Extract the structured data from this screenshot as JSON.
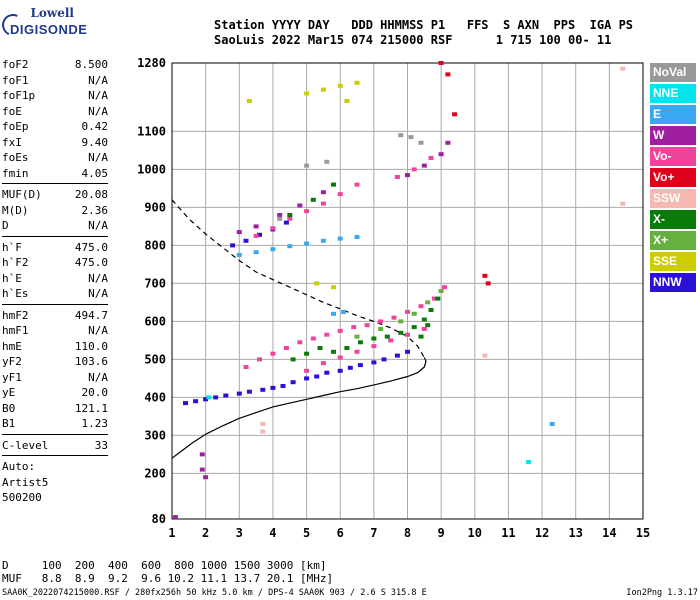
{
  "logo": {
    "line1": "Lowell",
    "line2": "DIGISONDE"
  },
  "header": {
    "line1": "Station YYYY DAY   DDD HHMMSS P1   FFS  S AXN  PPS  IGA PS",
    "line2": "SaoLuis 2022 Mar15 074 215000 RSF      1 715 100 00- 11"
  },
  "parameters": [
    [
      {
        "name": "foF2",
        "value": "8.500"
      },
      {
        "name": "foF1",
        "value": "N/A"
      },
      {
        "name": "foF1p",
        "value": "N/A"
      },
      {
        "name": "foE",
        "value": "N/A"
      },
      {
        "name": "foEp",
        "value": "0.42"
      },
      {
        "name": "fxI",
        "value": "9.40"
      },
      {
        "name": "foEs",
        "value": "N/A"
      },
      {
        "name": "fmin",
        "value": "4.05"
      }
    ],
    [
      {
        "name": "MUF(D)",
        "value": "20.08"
      },
      {
        "name": "M(D)",
        "value": "2.36"
      },
      {
        "name": "D",
        "value": "N/A"
      }
    ],
    [
      {
        "name": "h`F",
        "value": "475.0"
      },
      {
        "name": "h`F2",
        "value": "475.0"
      },
      {
        "name": "h`E",
        "value": "N/A"
      },
      {
        "name": "h`Es",
        "value": "N/A"
      }
    ],
    [
      {
        "name": "hmF2",
        "value": "494.7"
      },
      {
        "name": "hmF1",
        "value": "N/A"
      },
      {
        "name": "hmE",
        "value": "110.0"
      },
      {
        "name": "yF2",
        "value": "103.6"
      },
      {
        "name": "yF1",
        "value": "N/A"
      },
      {
        "name": "yE",
        "value": "20.0"
      },
      {
        "name": "B0",
        "value": "121.1"
      },
      {
        "name": "B1",
        "value": "1.23"
      }
    ],
    [
      {
        "name": "C-level",
        "value": "33"
      }
    ]
  ],
  "auto_text": [
    "Auto:",
    "Artist5",
    "500200"
  ],
  "legend": [
    {
      "label": "NoVal",
      "color": "#999999"
    },
    {
      "label": "NNE",
      "color": "#00e5ee"
    },
    {
      "label": "E",
      "color": "#3aa8f0"
    },
    {
      "label": "W",
      "color": "#a01ea0"
    },
    {
      "label": "Vo-",
      "color": "#f0449c"
    },
    {
      "label": "Vo+",
      "color": "#e0001c"
    },
    {
      "label": "SSW",
      "color": "#f5b8b0"
    },
    {
      "label": "X-",
      "color": "#0a7a0a"
    },
    {
      "label": "X+",
      "color": "#66b040"
    },
    {
      "label": "SSE",
      "color": "#cccc00"
    },
    {
      "label": "NNW",
      "color": "#2a10d8"
    }
  ],
  "footer": {
    "d_line": "D     100  200  400  600  800 1000 1500 3000 [km]",
    "muf_line": "MUF   8.8  8.9  9.2  9.6 10.2 11.1 13.7 20.1 [MHz]",
    "file_info": "SAA0K_2022074215000.RSF / 280fx256h 50 kHz 5.0 km / DPS-4 SAA0K 903 / 2.6 S 315.8 E",
    "version": "Ion2Png 1.3.17"
  },
  "chart_data": {
    "type": "scatter",
    "title": "",
    "xlabel": "",
    "ylabel": "",
    "xlim": [
      1,
      15
    ],
    "ylim": [
      80,
      1280
    ],
    "x_ticks": [
      1,
      2,
      3,
      4,
      5,
      6,
      7,
      8,
      9,
      10,
      11,
      12,
      13,
      14,
      15
    ],
    "y_ticks": [
      80,
      200,
      300,
      400,
      500,
      600,
      700,
      800,
      900,
      1000,
      1100,
      1280
    ],
    "grid": true,
    "series": [
      {
        "name": "NNW",
        "color": "#2a10d8",
        "points": [
          [
            1.4,
            385
          ],
          [
            1.7,
            390
          ],
          [
            2.0,
            395
          ],
          [
            2.3,
            400
          ],
          [
            2.6,
            405
          ],
          [
            3.0,
            410
          ],
          [
            3.3,
            415
          ],
          [
            3.7,
            420
          ],
          [
            4.0,
            425
          ],
          [
            4.3,
            430
          ],
          [
            4.6,
            440
          ],
          [
            5.0,
            450
          ],
          [
            5.3,
            455
          ],
          [
            5.6,
            465
          ],
          [
            6.0,
            470
          ],
          [
            6.3,
            478
          ],
          [
            6.6,
            485
          ],
          [
            7.0,
            492
          ],
          [
            7.3,
            500
          ],
          [
            7.7,
            510
          ],
          [
            8.0,
            520
          ],
          [
            2.8,
            800
          ],
          [
            3.2,
            812
          ],
          [
            3.6,
            828
          ],
          [
            4.0,
            842
          ],
          [
            4.4,
            860
          ]
        ]
      },
      {
        "name": "Vo-",
        "color": "#f0449c",
        "points": [
          [
            3.2,
            480
          ],
          [
            3.6,
            500
          ],
          [
            4.0,
            515
          ],
          [
            4.4,
            530
          ],
          [
            4.8,
            545
          ],
          [
            5.2,
            555
          ],
          [
            5.6,
            565
          ],
          [
            6.0,
            575
          ],
          [
            6.4,
            585
          ],
          [
            6.8,
            590
          ],
          [
            7.2,
            600
          ],
          [
            7.6,
            610
          ],
          [
            8.0,
            625
          ],
          [
            8.4,
            640
          ],
          [
            8.8,
            660
          ],
          [
            9.1,
            690
          ],
          [
            5.0,
            470
          ],
          [
            5.5,
            490
          ],
          [
            6.0,
            505
          ],
          [
            6.5,
            520
          ],
          [
            7.0,
            535
          ],
          [
            7.5,
            550
          ],
          [
            8.0,
            565
          ],
          [
            8.5,
            580
          ],
          [
            3.5,
            825
          ],
          [
            4.0,
            845
          ],
          [
            4.5,
            870
          ],
          [
            5.0,
            890
          ],
          [
            5.5,
            910
          ],
          [
            6.0,
            935
          ],
          [
            6.5,
            960
          ],
          [
            7.7,
            980
          ],
          [
            8.2,
            1000
          ],
          [
            8.7,
            1030
          ]
        ]
      },
      {
        "name": "X-",
        "color": "#0a7a0a",
        "points": [
          [
            4.6,
            500
          ],
          [
            5.0,
            515
          ],
          [
            5.4,
            530
          ],
          [
            5.8,
            520
          ],
          [
            6.2,
            530
          ],
          [
            6.6,
            545
          ],
          [
            7.0,
            555
          ],
          [
            7.4,
            560
          ],
          [
            7.8,
            570
          ],
          [
            8.2,
            585
          ],
          [
            8.5,
            605
          ],
          [
            8.7,
            630
          ],
          [
            8.9,
            660
          ],
          [
            8.4,
            560
          ],
          [
            8.6,
            590
          ],
          [
            4.5,
            880
          ],
          [
            5.2,
            920
          ],
          [
            5.8,
            960
          ]
        ]
      },
      {
        "name": "X+",
        "color": "#66b040",
        "points": [
          [
            7.8,
            600
          ],
          [
            8.2,
            620
          ],
          [
            8.6,
            650
          ],
          [
            9.0,
            680
          ],
          [
            6.5,
            560
          ],
          [
            7.2,
            580
          ]
        ]
      },
      {
        "name": "W",
        "color": "#a01ea0",
        "points": [
          [
            3.0,
            835
          ],
          [
            3.5,
            850
          ],
          [
            4.2,
            880
          ],
          [
            4.8,
            905
          ],
          [
            5.5,
            940
          ],
          [
            8.0,
            985
          ],
          [
            8.5,
            1010
          ],
          [
            9.0,
            1040
          ],
          [
            9.2,
            1070
          ],
          [
            1.9,
            250
          ],
          [
            1.9,
            210
          ],
          [
            2.0,
            190
          ],
          [
            1.1,
            85
          ]
        ]
      },
      {
        "name": "E",
        "color": "#3aa8f0",
        "points": [
          [
            3.0,
            775
          ],
          [
            3.5,
            782
          ],
          [
            4.0,
            790
          ],
          [
            4.5,
            798
          ],
          [
            5.0,
            805
          ],
          [
            5.5,
            812
          ],
          [
            6.0,
            818
          ],
          [
            6.5,
            822
          ],
          [
            5.8,
            620
          ],
          [
            6.1,
            625
          ],
          [
            12.3,
            330
          ]
        ]
      },
      {
        "name": "SSE",
        "color": "#cccc00",
        "points": [
          [
            5.0,
            1200
          ],
          [
            5.5,
            1210
          ],
          [
            6.0,
            1220
          ],
          [
            6.5,
            1228
          ],
          [
            5.3,
            700
          ],
          [
            5.8,
            690
          ],
          [
            3.3,
            1180
          ],
          [
            6.2,
            1180
          ]
        ]
      },
      {
        "name": "NNE",
        "color": "#00e5ee",
        "points": [
          [
            11.6,
            230
          ],
          [
            2.1,
            400
          ]
        ]
      },
      {
        "name": "Vo+",
        "color": "#e0001c",
        "points": [
          [
            9.0,
            1280
          ],
          [
            9.2,
            1250
          ],
          [
            10.3,
            720
          ],
          [
            10.4,
            700
          ],
          [
            9.4,
            1145
          ]
        ]
      },
      {
        "name": "SSW",
        "color": "#f5b8b0",
        "points": [
          [
            10.3,
            510
          ],
          [
            14.4,
            910
          ],
          [
            14.4,
            1265
          ],
          [
            3.7,
            330
          ],
          [
            3.7,
            310
          ]
        ]
      },
      {
        "name": "NoVal",
        "color": "#999999",
        "points": [
          [
            7.8,
            1090
          ],
          [
            8.1,
            1085
          ],
          [
            8.4,
            1070
          ],
          [
            5.0,
            1010
          ],
          [
            5.6,
            1020
          ],
          [
            4.2,
            870
          ]
        ]
      }
    ],
    "lines": [
      {
        "style": "dashed",
        "points": [
          [
            1.0,
            920
          ],
          [
            1.5,
            870
          ],
          [
            2.0,
            830
          ],
          [
            2.5,
            795
          ],
          [
            3.0,
            760
          ],
          [
            3.5,
            730
          ],
          [
            4.0,
            710
          ],
          [
            4.5,
            690
          ],
          [
            5.0,
            670
          ],
          [
            5.5,
            650
          ],
          [
            6.0,
            633
          ],
          [
            6.5,
            615
          ],
          [
            7.0,
            600
          ],
          [
            7.5,
            583
          ],
          [
            8.0,
            560
          ],
          [
            8.3,
            535
          ],
          [
            8.5,
            505
          ]
        ]
      },
      {
        "style": "solid",
        "points": [
          [
            1.0,
            240
          ],
          [
            1.3,
            260
          ],
          [
            1.6,
            280
          ],
          [
            2.0,
            303
          ],
          [
            2.5,
            325
          ],
          [
            3.0,
            345
          ],
          [
            3.5,
            360
          ],
          [
            4.0,
            375
          ],
          [
            4.5,
            385
          ],
          [
            5.0,
            395
          ],
          [
            5.5,
            405
          ],
          [
            6.0,
            415
          ],
          [
            6.5,
            423
          ],
          [
            7.0,
            433
          ],
          [
            7.5,
            443
          ],
          [
            8.0,
            455
          ],
          [
            8.3,
            465
          ],
          [
            8.5,
            480
          ],
          [
            8.55,
            495
          ],
          [
            8.5,
            505
          ]
        ]
      }
    ]
  }
}
